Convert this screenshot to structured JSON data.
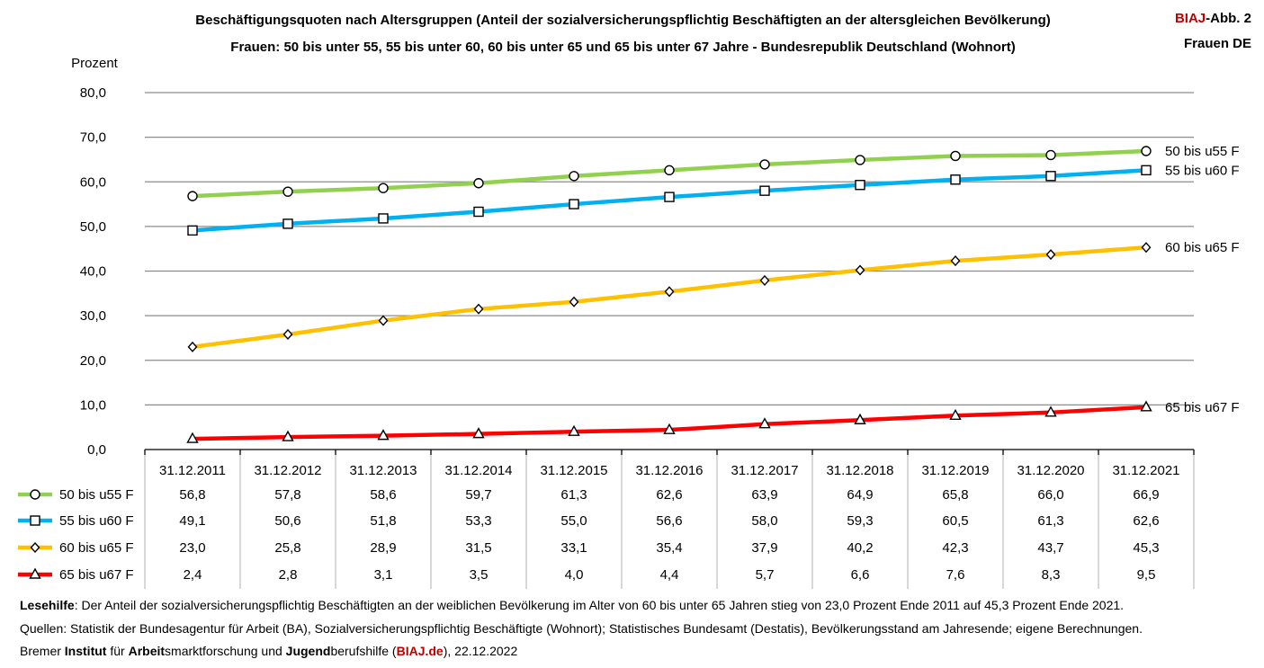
{
  "header": {
    "title_line1": "Beschäftigungsquoten nach Altersgruppen (Anteil der sozialversicherungspflichtig Beschäftigten an der altersgleichen Bevölkerung)",
    "title_line2": "Frauen: 50 bis unter 55, 55 bis unter 60, 60 bis unter 65 und 65 bis unter 67 Jahre - Bundesrepublik Deutschland (Wohnort)",
    "badge_brand": "BIAJ",
    "badge_suffix": "-Abb. 2",
    "badge_line2": "Frauen DE"
  },
  "chart_data": {
    "type": "line",
    "title": "Beschäftigungsquoten nach Altersgruppen (Anteil der sozialversicherungspflichtig Beschäftigten an der altersgleichen Bevölkerung)",
    "ylabel": "Prozent",
    "xlabel": "",
    "ylim": [
      0,
      80
    ],
    "yticks": [
      "0,0",
      "10,0",
      "20,0",
      "30,0",
      "40,0",
      "50,0",
      "60,0",
      "70,0",
      "80,0"
    ],
    "grid": true,
    "categories": [
      "31.12.2011",
      "31.12.2012",
      "31.12.2013",
      "31.12.2014",
      "31.12.2015",
      "31.12.2016",
      "31.12.2017",
      "31.12.2018",
      "31.12.2019",
      "31.12.2020",
      "31.12.2021"
    ],
    "series": [
      {
        "name": "50 bis u55 F",
        "color": "#92d050",
        "marker": "circle",
        "values": [
          56.8,
          57.8,
          58.6,
          59.7,
          61.3,
          62.6,
          63.9,
          64.9,
          65.8,
          66.0,
          66.9
        ],
        "labels": [
          "56,8",
          "57,8",
          "58,6",
          "59,7",
          "61,3",
          "62,6",
          "63,9",
          "64,9",
          "65,8",
          "66,0",
          "66,9"
        ]
      },
      {
        "name": "55 bis u60 F",
        "color": "#00b0f0",
        "marker": "square",
        "values": [
          49.1,
          50.6,
          51.8,
          53.3,
          55.0,
          56.6,
          58.0,
          59.3,
          60.5,
          61.3,
          62.6
        ],
        "labels": [
          "49,1",
          "50,6",
          "51,8",
          "53,3",
          "55,0",
          "56,6",
          "58,0",
          "59,3",
          "60,5",
          "61,3",
          "62,6"
        ]
      },
      {
        "name": "60 bis u65 F",
        "color": "#ffc000",
        "marker": "diamond",
        "values": [
          23.0,
          25.8,
          28.9,
          31.5,
          33.1,
          35.4,
          37.9,
          40.2,
          42.3,
          43.7,
          45.3
        ],
        "labels": [
          "23,0",
          "25,8",
          "28,9",
          "31,5",
          "33,1",
          "35,4",
          "37,9",
          "40,2",
          "42,3",
          "43,7",
          "45,3"
        ]
      },
      {
        "name": "65 bis u67 F",
        "color": "#ff0000",
        "marker": "triangle",
        "values": [
          2.4,
          2.8,
          3.1,
          3.5,
          4.0,
          4.4,
          5.7,
          6.6,
          7.6,
          8.3,
          9.5
        ],
        "labels": [
          "2,4",
          "2,8",
          "3,1",
          "3,5",
          "4,0",
          "4,4",
          "5,7",
          "6,6",
          "7,6",
          "8,3",
          "9,5"
        ]
      }
    ]
  },
  "footer": {
    "lesehilfe_label": "Lesehilfe",
    "lesehilfe_text": ": Der Anteil der sozialversicherungspflichtig Beschäftigten an der weiblichen Bevölkerung im Alter von 60 bis unter 65 Jahren stieg von 23,0 Prozent Ende 2011 auf 45,3 Prozent Ende 2021.",
    "sources": "Quellen: Statistik der Bundesagentur für Arbeit (BA), Sozialversicherungspflichtig Beschäftigte (Wohnort); Statistisches Bundesamt (Destatis), Bevölkerungsstand am Jahresende; eigene Berechnungen.",
    "credit_p1": "Bremer ",
    "credit_b1": "Institut",
    "credit_p2": " für ",
    "credit_b2": "Arbeit",
    "credit_p3": "smarktforschung und ",
    "credit_b3": "Jugend",
    "credit_p4": "berufshilfe (",
    "credit_link": "BIAJ.de",
    "credit_p5": "), 22.12.2022"
  }
}
